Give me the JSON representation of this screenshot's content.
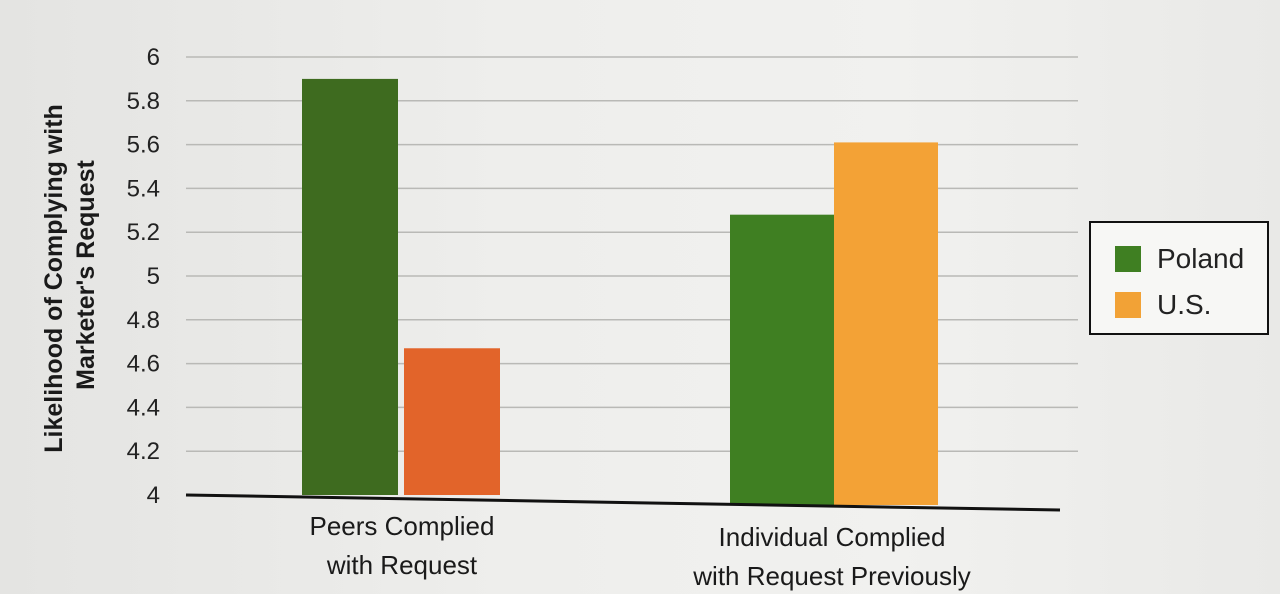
{
  "chart_data": {
    "type": "bar",
    "title": "",
    "xlabel": "",
    "ylabel_lines": [
      "Likelihood of Complying with",
      "Marketer's Request"
    ],
    "categories": [
      {
        "name": "Peers Complied with Request",
        "lines": [
          "Peers Complied",
          "with Request"
        ]
      },
      {
        "name": "Individual Complied with Request Previously",
        "lines": [
          "Individual Complied",
          "with Request Previously"
        ]
      }
    ],
    "series": [
      {
        "name": "Poland",
        "values": [
          5.9,
          5.28
        ],
        "colors": [
          "#3e6b1f",
          "#3f7f22"
        ]
      },
      {
        "name": "U.S.",
        "values": [
          4.67,
          5.61
        ],
        "colors": [
          "#e2642a",
          "#f3a236"
        ]
      }
    ],
    "ylim": [
      4,
      6
    ],
    "yticks": [
      "4",
      "4.2",
      "4.4",
      "4.6",
      "4.8",
      "5",
      "5.2",
      "5.4",
      "5.6",
      "5.8",
      "6"
    ],
    "grid": true,
    "legend": {
      "position": "right",
      "entries": [
        {
          "label": "Poland",
          "color": "#3f7f22"
        },
        {
          "label": "U.S.",
          "color": "#f2a236"
        }
      ]
    }
  }
}
